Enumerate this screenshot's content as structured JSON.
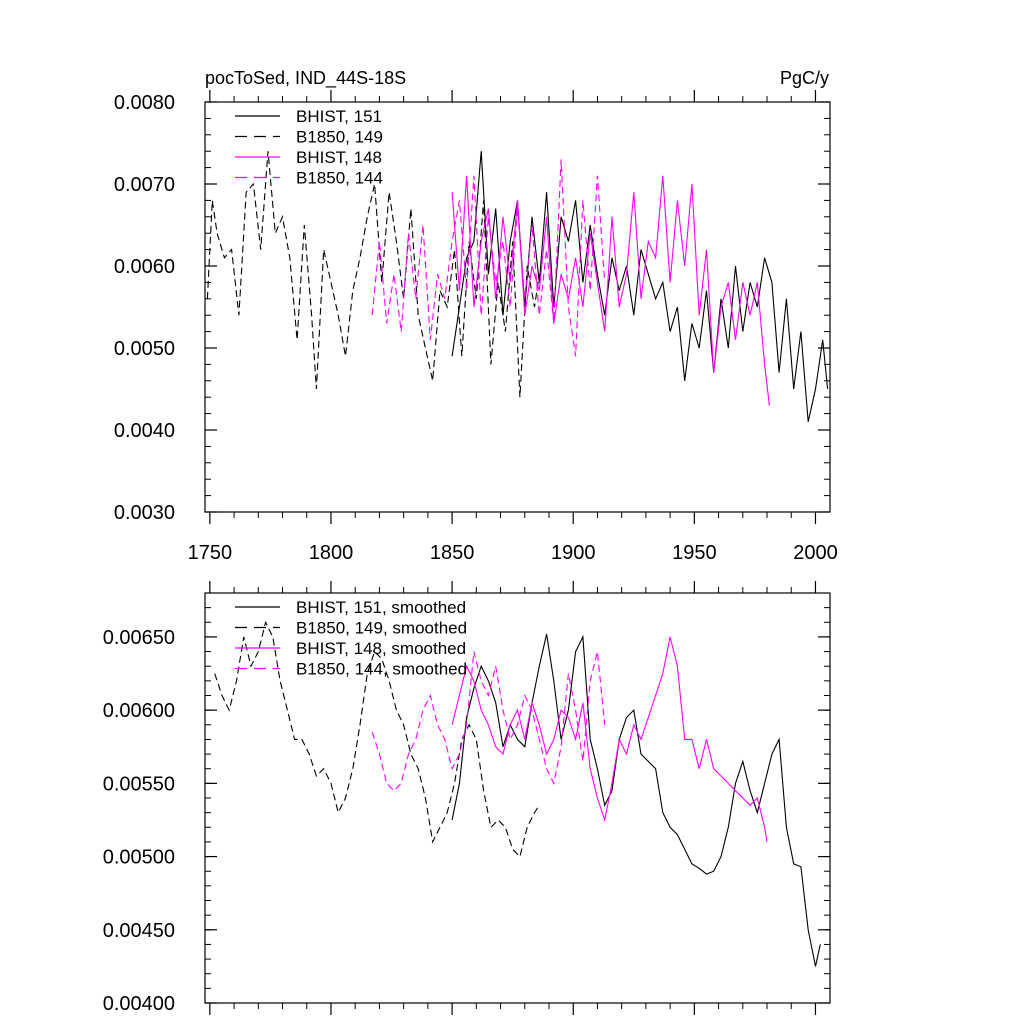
{
  "colors": {
    "black": "#000000",
    "magenta": "#ff00ff"
  },
  "chart_data": [
    {
      "type": "line",
      "title": "pocToSed, IND_44S-18S",
      "units": "PgC/y",
      "xlim": [
        1748,
        2006
      ],
      "ylim": [
        0.003,
        0.008
      ],
      "y_ticks": [
        0.003,
        0.004,
        0.005,
        0.006,
        0.007,
        0.008
      ],
      "y_tick_labels": [
        "0.0030",
        "0.0040",
        "0.0050",
        "0.0060",
        "0.0070",
        "0.0080"
      ],
      "x_ticks": [
        1750,
        1800,
        1850,
        1900,
        1950,
        2000
      ],
      "x_tick_labels": [
        "1750",
        "1800",
        "1850",
        "1900",
        "1950",
        "2000"
      ],
      "legend_position": "top-left",
      "series": [
        {
          "name": "BHIST, 151",
          "color": "#000000",
          "dash": "solid",
          "x": [
            1850,
            1853,
            1856,
            1859,
            1862,
            1865,
            1868,
            1871,
            1874,
            1877,
            1880,
            1883,
            1886,
            1889,
            1892,
            1895,
            1898,
            1901,
            1904,
            1907,
            1910,
            1913,
            1916,
            1919,
            1922,
            1925,
            1928,
            1931,
            1934,
            1937,
            1940,
            1943,
            1946,
            1949,
            1952,
            1955,
            1958,
            1961,
            1964,
            1967,
            1970,
            1973,
            1976,
            1979,
            1982,
            1985,
            1988,
            1991,
            1994,
            1997,
            2000,
            2003,
            2005
          ],
          "values": [
            0.0049,
            0.0055,
            0.0061,
            0.0063,
            0.0074,
            0.0059,
            0.0067,
            0.0054,
            0.0063,
            0.0068,
            0.0055,
            0.0066,
            0.0058,
            0.0069,
            0.0055,
            0.0066,
            0.0063,
            0.0068,
            0.0058,
            0.0065,
            0.0059,
            0.0054,
            0.0061,
            0.0057,
            0.006,
            0.0054,
            0.0062,
            0.0059,
            0.0056,
            0.0058,
            0.0052,
            0.0055,
            0.0046,
            0.0053,
            0.005,
            0.0057,
            0.0047,
            0.0056,
            0.005,
            0.006,
            0.0052,
            0.0058,
            0.0055,
            0.0061,
            0.0058,
            0.0047,
            0.0056,
            0.0045,
            0.0052,
            0.0041,
            0.0045,
            0.0051,
            0.0045
          ]
        },
        {
          "name": "B1850, 149",
          "color": "#000000",
          "dash": "dashed",
          "x": [
            1749,
            1751,
            1753,
            1756,
            1759,
            1762,
            1765,
            1768,
            1771,
            1774,
            1777,
            1780,
            1783,
            1786,
            1789,
            1792,
            1794,
            1797,
            1800,
            1803,
            1806,
            1809,
            1812,
            1815,
            1818,
            1821,
            1824,
            1827,
            1830,
            1833,
            1836,
            1839,
            1842,
            1845,
            1848,
            1851,
            1854,
            1857,
            1860,
            1863,
            1866,
            1869,
            1872,
            1875,
            1878,
            1881,
            1884,
            1886
          ],
          "values": [
            0.0056,
            0.0068,
            0.0064,
            0.0061,
            0.0062,
            0.0054,
            0.0069,
            0.007,
            0.0062,
            0.0074,
            0.0064,
            0.0066,
            0.0061,
            0.0051,
            0.0065,
            0.0054,
            0.0045,
            0.0062,
            0.0058,
            0.0054,
            0.0049,
            0.0057,
            0.0061,
            0.0066,
            0.007,
            0.0058,
            0.0069,
            0.0063,
            0.0056,
            0.0067,
            0.0054,
            0.005,
            0.0046,
            0.0057,
            0.0055,
            0.0062,
            0.0049,
            0.0063,
            0.0056,
            0.0068,
            0.0048,
            0.0058,
            0.0052,
            0.0063,
            0.0044,
            0.006,
            0.0055,
            0.0059
          ]
        },
        {
          "name": "BHIST, 148",
          "color": "#ff00ff",
          "dash": "solid",
          "x": [
            1850,
            1853,
            1856,
            1859,
            1862,
            1865,
            1868,
            1871,
            1874,
            1877,
            1880,
            1883,
            1886,
            1889,
            1892,
            1895,
            1898,
            1901,
            1904,
            1907,
            1910,
            1913,
            1916,
            1919,
            1922,
            1925,
            1928,
            1931,
            1934,
            1937,
            1940,
            1943,
            1946,
            1949,
            1952,
            1955,
            1958,
            1961,
            1964,
            1967,
            1970,
            1973,
            1976,
            1979,
            1981
          ],
          "values": [
            0.0069,
            0.0057,
            0.0071,
            0.0055,
            0.0063,
            0.0067,
            0.0056,
            0.0066,
            0.0058,
            0.0068,
            0.0054,
            0.006,
            0.0057,
            0.0066,
            0.0053,
            0.0059,
            0.0056,
            0.0061,
            0.0055,
            0.0064,
            0.0058,
            0.0052,
            0.0066,
            0.0055,
            0.0059,
            0.0069,
            0.0056,
            0.0063,
            0.0061,
            0.0071,
            0.0058,
            0.0068,
            0.006,
            0.007,
            0.0054,
            0.0062,
            0.0047,
            0.0055,
            0.0058,
            0.0051,
            0.0058,
            0.0054,
            0.0058,
            0.0048,
            0.0043
          ]
        },
        {
          "name": "B1850, 144",
          "color": "#ff00ff",
          "dash": "dashed",
          "x": [
            1817,
            1820,
            1823,
            1826,
            1829,
            1832,
            1835,
            1838,
            1841,
            1844,
            1847,
            1850,
            1853,
            1856,
            1859,
            1862,
            1865,
            1868,
            1871,
            1874,
            1877,
            1880,
            1883,
            1886,
            1889,
            1892,
            1895,
            1898,
            1901,
            1904,
            1907,
            1910,
            1913
          ],
          "values": [
            0.0054,
            0.0063,
            0.0053,
            0.0059,
            0.0052,
            0.0064,
            0.0056,
            0.0065,
            0.0051,
            0.0059,
            0.0056,
            0.0063,
            0.0068,
            0.0057,
            0.0071,
            0.0054,
            0.0066,
            0.0058,
            0.0063,
            0.0055,
            0.0067,
            0.0056,
            0.0065,
            0.0054,
            0.0062,
            0.0053,
            0.0073,
            0.0055,
            0.0049,
            0.0068,
            0.0057,
            0.0071,
            0.0058
          ]
        }
      ]
    },
    {
      "type": "line",
      "xlim": [
        1748,
        2006
      ],
      "ylim": [
        0.004,
        0.0068
      ],
      "y_ticks": [
        0.004,
        0.0045,
        0.005,
        0.0055,
        0.006,
        0.0065
      ],
      "y_tick_labels": [
        "0.00400",
        "0.00450",
        "0.00500",
        "0.00550",
        "0.00600",
        "0.00650"
      ],
      "x_ticks": [
        1750,
        1800,
        1850,
        1900,
        1950,
        2000
      ],
      "legend_position": "top-left",
      "series": [
        {
          "name": "BHIST, 151, smoothed",
          "color": "#000000",
          "dash": "solid",
          "x": [
            1850,
            1853,
            1856,
            1859,
            1862,
            1865,
            1868,
            1871,
            1874,
            1877,
            1880,
            1883,
            1886,
            1889,
            1892,
            1895,
            1898,
            1901,
            1904,
            1907,
            1910,
            1913,
            1916,
            1919,
            1922,
            1925,
            1928,
            1931,
            1934,
            1937,
            1940,
            1943,
            1946,
            1949,
            1952,
            1955,
            1958,
            1961,
            1964,
            1967,
            1970,
            1973,
            1976,
            1979,
            1982,
            1985,
            1988,
            1991,
            1994,
            1997,
            2000,
            2002
          ],
          "values": [
            0.00525,
            0.0055,
            0.00595,
            0.00615,
            0.0063,
            0.0062,
            0.00605,
            0.00575,
            0.0059,
            0.0058,
            0.00575,
            0.00605,
            0.0063,
            0.00652,
            0.0062,
            0.0058,
            0.006,
            0.0064,
            0.0065,
            0.0058,
            0.0056,
            0.00535,
            0.00545,
            0.0058,
            0.00595,
            0.006,
            0.0057,
            0.00565,
            0.0056,
            0.0053,
            0.0052,
            0.00515,
            0.00505,
            0.00495,
            0.00492,
            0.00488,
            0.0049,
            0.005,
            0.0052,
            0.0055,
            0.00565,
            0.00545,
            0.0053,
            0.0055,
            0.0057,
            0.0058,
            0.0052,
            0.00495,
            0.00493,
            0.0045,
            0.00425,
            0.0044
          ]
        },
        {
          "name": "B1850, 149, smoothed",
          "color": "#000000",
          "dash": "dashed",
          "x": [
            1752,
            1755,
            1758,
            1761,
            1764,
            1767,
            1770,
            1773,
            1776,
            1779,
            1782,
            1785,
            1788,
            1791,
            1794,
            1797,
            1800,
            1803,
            1806,
            1809,
            1812,
            1815,
            1818,
            1821,
            1824,
            1827,
            1830,
            1833,
            1836,
            1839,
            1842,
            1845,
            1848,
            1851,
            1854,
            1857,
            1860,
            1863,
            1866,
            1869,
            1872,
            1875,
            1878,
            1881,
            1884,
            1886
          ],
          "values": [
            0.00625,
            0.0061,
            0.006,
            0.0062,
            0.0065,
            0.0063,
            0.0064,
            0.0066,
            0.0065,
            0.0062,
            0.006,
            0.0058,
            0.0058,
            0.0057,
            0.00555,
            0.0056,
            0.0055,
            0.0053,
            0.0054,
            0.0056,
            0.0059,
            0.00625,
            0.0064,
            0.00635,
            0.0062,
            0.006,
            0.0059,
            0.0057,
            0.0056,
            0.0054,
            0.0051,
            0.0052,
            0.0053,
            0.0055,
            0.0058,
            0.0059,
            0.0058,
            0.00545,
            0.0052,
            0.00525,
            0.0052,
            0.00505,
            0.005,
            0.0052,
            0.0053,
            0.00535
          ]
        },
        {
          "name": "BHIST, 148, smoothed",
          "color": "#ff00ff",
          "dash": "solid",
          "x": [
            1850,
            1853,
            1856,
            1859,
            1862,
            1865,
            1868,
            1871,
            1874,
            1877,
            1880,
            1883,
            1886,
            1889,
            1892,
            1895,
            1898,
            1901,
            1904,
            1907,
            1910,
            1913,
            1916,
            1919,
            1922,
            1925,
            1928,
            1931,
            1934,
            1937,
            1940,
            1943,
            1946,
            1949,
            1952,
            1955,
            1958,
            1961,
            1964,
            1967,
            1970,
            1973,
            1976,
            1979,
            1980
          ],
          "values": [
            0.0059,
            0.0061,
            0.0063,
            0.0062,
            0.006,
            0.0059,
            0.00575,
            0.0057,
            0.0059,
            0.006,
            0.0058,
            0.00605,
            0.0059,
            0.0057,
            0.0058,
            0.006,
            0.00595,
            0.0058,
            0.00605,
            0.0056,
            0.0054,
            0.00525,
            0.0055,
            0.0058,
            0.0057,
            0.0059,
            0.0058,
            0.00595,
            0.0061,
            0.00625,
            0.0065,
            0.0063,
            0.0058,
            0.0058,
            0.0056,
            0.0058,
            0.0056,
            0.00555,
            0.0055,
            0.00545,
            0.0054,
            0.00535,
            0.0054,
            0.0052,
            0.0051
          ]
        },
        {
          "name": "B1850, 144, smoothed",
          "color": "#ff00ff",
          "dash": "dashed",
          "x": [
            1817,
            1820,
            1823,
            1826,
            1829,
            1832,
            1835,
            1838,
            1841,
            1844,
            1847,
            1850,
            1853,
            1856,
            1859,
            1862,
            1865,
            1868,
            1871,
            1874,
            1877,
            1880,
            1883,
            1886,
            1889,
            1892,
            1895,
            1898,
            1901,
            1904,
            1907,
            1910,
            1913
          ],
          "values": [
            0.00585,
            0.0057,
            0.0055,
            0.00545,
            0.0055,
            0.0057,
            0.0058,
            0.006,
            0.0061,
            0.0059,
            0.0058,
            0.0056,
            0.0057,
            0.0059,
            0.0064,
            0.0062,
            0.0061,
            0.0063,
            0.006,
            0.0058,
            0.0059,
            0.0061,
            0.006,
            0.0058,
            0.0056,
            0.0055,
            0.00575,
            0.00625,
            0.006,
            0.00565,
            0.0062,
            0.0064,
            0.0059
          ]
        }
      ]
    }
  ]
}
